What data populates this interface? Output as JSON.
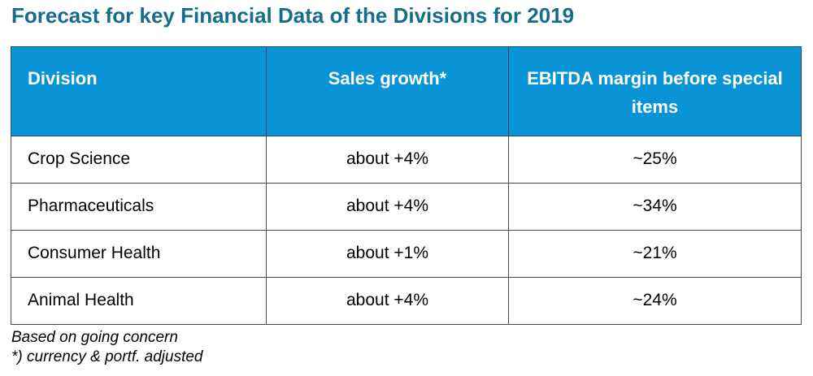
{
  "title": "Forecast for key Financial Data of the Divisions for 2019",
  "table": {
    "columns": [
      "Division",
      "Sales growth*",
      "EBITDA margin before special items"
    ],
    "rows": [
      {
        "division": "Crop Science",
        "sales_growth": "about +4%",
        "ebitda_margin": "~25%"
      },
      {
        "division": "Pharmaceuticals",
        "sales_growth": "about +4%",
        "ebitda_margin": "~34%"
      },
      {
        "division": "Consumer Health",
        "sales_growth": "about +1%",
        "ebitda_margin": "~21%"
      },
      {
        "division": "Animal Health",
        "sales_growth": "about +4%",
        "ebitda_margin": "~24%"
      }
    ]
  },
  "footnotes": [
    "Based on going concern",
    "*) currency & portf. adjusted"
  ],
  "colors": {
    "title_text": "#156D8C",
    "header_bg": "#0A94D8",
    "header_text": "#FFFFFF",
    "body_text": "#000000",
    "border": "#4A4A4A",
    "header_border": "#2C4A63"
  }
}
